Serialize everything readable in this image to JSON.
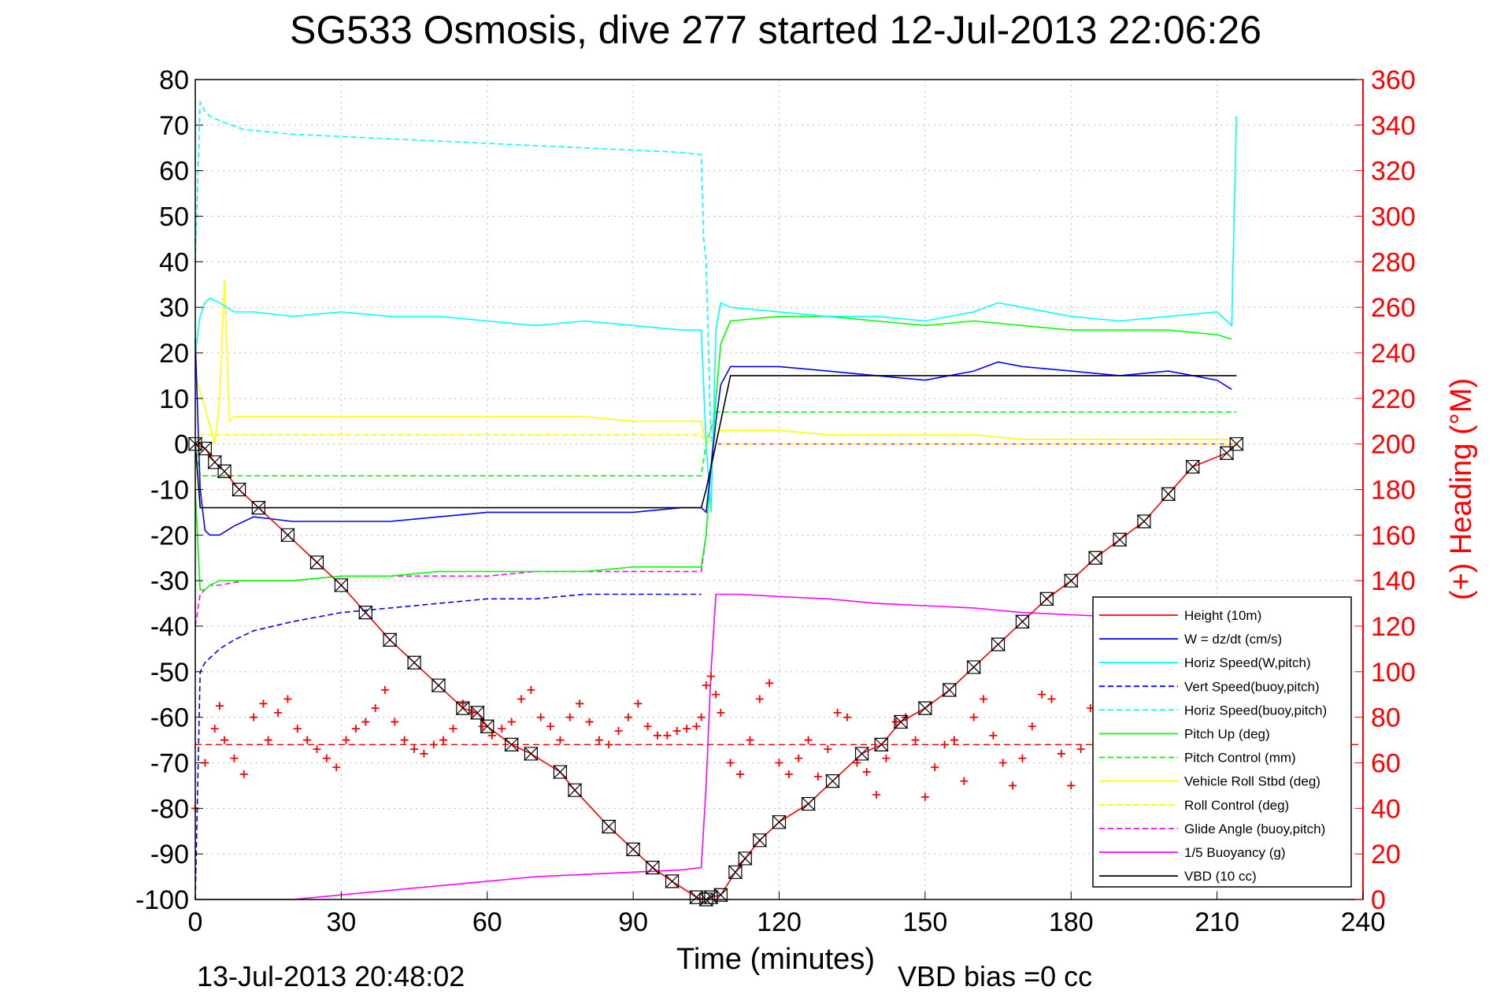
{
  "title": "SG533 Osmosis, dive 277 started 12-Jul-2013 22:06:26",
  "footer": {
    "timestamp": "13-Jul-2013 20:48:02",
    "vbd_bias": "VBD bias =0 cc"
  },
  "chart_data": {
    "type": "line",
    "title": "SG533 Osmosis, dive 277 started 12-Jul-2013 22:06:26",
    "xlabel": "Time (minutes)",
    "ylabel": "",
    "ylabel_right": "(+) Heading (°M)",
    "xlim": [
      0,
      240
    ],
    "ylim": [
      -100,
      80
    ],
    "ylim_right": [
      0,
      360
    ],
    "xticks": [
      0,
      30,
      60,
      90,
      120,
      150,
      180,
      210,
      240
    ],
    "yticks": [
      -100,
      -90,
      -80,
      -70,
      -60,
      -50,
      -40,
      -30,
      -20,
      -10,
      0,
      10,
      20,
      30,
      40,
      50,
      60,
      70,
      80
    ],
    "yticks_right": [
      0,
      20,
      40,
      60,
      80,
      100,
      120,
      140,
      160,
      180,
      200,
      220,
      240,
      260,
      280,
      300,
      320,
      340,
      360
    ],
    "grid": true,
    "legend_position": "bottom-right",
    "colors": {
      "height": "#ff0000",
      "w": "#0000ff",
      "horiz_w": "#00ffff",
      "vert_buoy": "#0000ff",
      "horiz_buoy": "#00ffff",
      "pitch_up": "#00ff00",
      "pitch_control": "#00ff00",
      "roll": "#ffff00",
      "roll_control": "#ffff00",
      "glide": "#ff00ff",
      "buoyancy": "#ff00ff",
      "vbd": "#000000",
      "heading": "#ff0000"
    },
    "series": [
      {
        "name": "Height (10m)",
        "key": "height",
        "style": "solid",
        "marker": "bowtie",
        "x": [
          0,
          2,
          4,
          6,
          9,
          13,
          19,
          25,
          30,
          35,
          40,
          45,
          50,
          55,
          58,
          60,
          65,
          69,
          75,
          78,
          85,
          90,
          94,
          98,
          103,
          105,
          106,
          108,
          111,
          113,
          116,
          120,
          126,
          131,
          137,
          141,
          145,
          150,
          155,
          160,
          165,
          170,
          175,
          180,
          185,
          190,
          195,
          200,
          205,
          212,
          214
        ],
        "y": [
          0,
          -1,
          -4,
          -6,
          -10,
          -14,
          -20,
          -26,
          -31,
          -37,
          -43,
          -48,
          -53,
          -58,
          -59,
          -62,
          -66,
          -68,
          -72,
          -76,
          -84,
          -89,
          -93,
          -96,
          -99.5,
          -100,
          -99.5,
          -99,
          -94,
          -91,
          -87,
          -83,
          -79,
          -74,
          -68,
          -66,
          -61,
          -58,
          -54,
          -49,
          -44,
          -39,
          -34,
          -30,
          -25,
          -21,
          -17,
          -11,
          -5,
          -2,
          0
        ]
      },
      {
        "name": "W = dz/dt (cm/s)",
        "key": "w",
        "style": "solid",
        "x": [
          0,
          1,
          2,
          3,
          5,
          8,
          12,
          20,
          30,
          40,
          50,
          60,
          70,
          80,
          90,
          100,
          104,
          105,
          106,
          107,
          108,
          110,
          120,
          130,
          140,
          150,
          160,
          165,
          170,
          180,
          190,
          200,
          210,
          213
        ],
        "y": [
          23,
          -10,
          -19,
          -20,
          -20,
          -18,
          -16,
          -17,
          -17,
          -17,
          -16,
          -15,
          -15,
          -15,
          -15,
          -14,
          -14,
          -15,
          -5,
          5,
          13,
          17,
          17,
          16,
          15,
          14,
          16,
          18,
          17,
          16,
          15,
          16,
          14,
          12
        ]
      },
      {
        "name": "Horiz Speed(W,pitch)",
        "key": "horiz_w",
        "style": "solid",
        "x": [
          0,
          1,
          2,
          3,
          5,
          8,
          12,
          20,
          30,
          40,
          50,
          60,
          70,
          80,
          90,
          100,
          104,
          105,
          106,
          107,
          108,
          110,
          120,
          130,
          140,
          150,
          160,
          165,
          170,
          180,
          190,
          200,
          210,
          213,
          214
        ],
        "y": [
          20,
          28,
          31,
          32,
          31,
          29,
          29,
          28,
          29,
          28,
          28,
          27,
          26,
          27,
          26,
          25,
          25,
          0,
          -15,
          25,
          31,
          30,
          29,
          28,
          28,
          27,
          29,
          31,
          30,
          28,
          27,
          28,
          29,
          26,
          72
        ]
      },
      {
        "name": "Vert Speed(buoy,pitch)",
        "key": "vert_buoy",
        "style": "dashed",
        "x": [
          0,
          1,
          2,
          3,
          5,
          8,
          12,
          20,
          30,
          40,
          50,
          60,
          70,
          80,
          90,
          100,
          104
        ],
        "y": [
          -100,
          -50,
          -48,
          -47,
          -45,
          -43,
          -41,
          -39,
          -37,
          -36,
          -35,
          -34,
          -34,
          -33,
          -33,
          -33,
          -33
        ]
      },
      {
        "name": "Horiz Speed(buoy,pitch)",
        "key": "horiz_buoy",
        "style": "dashed",
        "x": [
          0,
          1,
          2,
          3,
          5,
          10,
          20,
          30,
          40,
          50,
          60,
          70,
          80,
          90,
          100,
          104,
          104.5,
          105,
          106
        ],
        "y": [
          40,
          75,
          73,
          72,
          71,
          69,
          68,
          67.5,
          67,
          66.5,
          66,
          65.5,
          65,
          64.5,
          64,
          63.5,
          45,
          40,
          0
        ]
      },
      {
        "name": "Pitch Up (deg)",
        "key": "pitch_up",
        "style": "solid",
        "x": [
          0,
          1,
          2,
          3,
          5,
          10,
          20,
          30,
          40,
          50,
          60,
          70,
          80,
          90,
          100,
          104,
          105,
          106,
          107,
          108,
          110,
          120,
          130,
          140,
          150,
          160,
          170,
          180,
          190,
          200,
          210,
          213
        ],
        "y": [
          -10,
          -32,
          -32,
          -31,
          -30,
          -30,
          -30,
          -29,
          -29,
          -28,
          -28,
          -28,
          -28,
          -27,
          -27,
          -27,
          -20,
          -5,
          10,
          22,
          27,
          28,
          28,
          27,
          26,
          27,
          26,
          25,
          25,
          25,
          24,
          23
        ]
      },
      {
        "name": "Pitch Control (mm)",
        "key": "pitch_control",
        "style": "dashed",
        "x": [
          0,
          1,
          2,
          3,
          104,
          105,
          107,
          108,
          214
        ],
        "y": [
          0,
          -7,
          -7,
          -7,
          -7,
          0,
          7,
          7,
          7
        ]
      },
      {
        "name": "Vehicle Roll Stbd (deg)",
        "key": "roll",
        "style": "solid",
        "x": [
          0,
          2,
          4,
          5,
          6,
          7,
          8,
          10,
          20,
          30,
          40,
          50,
          60,
          70,
          80,
          90,
          100,
          104,
          105,
          108,
          120,
          130,
          140,
          150,
          160,
          170,
          180,
          190,
          200,
          210,
          213
        ],
        "y": [
          15,
          8,
          0,
          10,
          36,
          5,
          6,
          6,
          6,
          6,
          6,
          6,
          6,
          6,
          6,
          5,
          5,
          5,
          0,
          3,
          3,
          2,
          2,
          2,
          2,
          1,
          1,
          1,
          1,
          1,
          1
        ]
      },
      {
        "name": "Roll Control (deg)",
        "key": "roll_control",
        "style": "dashed",
        "x": [
          0,
          1,
          2,
          104,
          105,
          106,
          214
        ],
        "y": [
          0,
          2,
          2,
          2,
          0,
          0,
          0
        ]
      },
      {
        "name": "Glide Angle (buoy,pitch)",
        "key": "glide",
        "style": "dashed",
        "x": [
          0,
          1,
          2,
          3,
          5,
          10,
          20,
          30,
          40,
          50,
          60,
          70,
          80,
          90,
          100,
          104,
          105,
          106,
          107,
          214
        ],
        "y": [
          -40,
          -33,
          -32,
          -31,
          -31,
          -30,
          -30,
          -29,
          -29,
          -29,
          -29,
          -28,
          -28,
          -28,
          -28,
          -28,
          -20,
          -5,
          0,
          0
        ]
      },
      {
        "name": "1/5 Buoyancy (g)",
        "key": "buoyancy",
        "style": "solid",
        "x": [
          0,
          2,
          3,
          10,
          20,
          30,
          40,
          50,
          60,
          70,
          80,
          90,
          100,
          104,
          105,
          106,
          107,
          112,
          120,
          130,
          140,
          150,
          160,
          170,
          180,
          190,
          200,
          214
        ],
        "y": [
          -100,
          -100,
          -100,
          -100,
          -100,
          -99,
          -98,
          -97,
          -96,
          -95,
          -94.5,
          -94,
          -93.5,
          -93,
          -75,
          -50,
          -33,
          -33,
          -33.5,
          -34,
          -35,
          -35.5,
          -36,
          -37,
          -37.5,
          -38,
          -38.5,
          -39
        ]
      },
      {
        "name": "VBD (10 cc)",
        "key": "vbd",
        "style": "solid",
        "x": [
          0,
          1,
          2,
          104,
          105,
          106,
          107,
          108,
          109,
          110,
          214
        ],
        "y": [
          0,
          -14,
          -14,
          -14,
          -10,
          -5,
          0,
          5,
          10,
          15,
          15
        ]
      }
    ],
    "heading": {
      "name": "Heading",
      "key": "heading",
      "axis": "right",
      "marker": "+",
      "mean_line": 68,
      "x": [
        0,
        2,
        4,
        5,
        6,
        8,
        10,
        12,
        14,
        15,
        17,
        19,
        21,
        23,
        25,
        27,
        29,
        31,
        33,
        35,
        37,
        39,
        41,
        43,
        45,
        47,
        49,
        51,
        53,
        55,
        57,
        59,
        61,
        63,
        65,
        67,
        69,
        71,
        73,
        75,
        77,
        79,
        81,
        83,
        85,
        87,
        89,
        91,
        93,
        95,
        97,
        99,
        101,
        103,
        104,
        105,
        106,
        107,
        108,
        110,
        112,
        114,
        116,
        118,
        120,
        122,
        124,
        126,
        128,
        130,
        132,
        134,
        136,
        138,
        140,
        142,
        144,
        146,
        148,
        150,
        152,
        154,
        156,
        158,
        160,
        162,
        164,
        166,
        168,
        170,
        172,
        174,
        176,
        178,
        180,
        182,
        184,
        186,
        188,
        190,
        192,
        194,
        196,
        198,
        200,
        202,
        204,
        206,
        208,
        210,
        212,
        214
      ],
      "y": [
        40,
        60,
        75,
        85,
        70,
        62,
        55,
        80,
        86,
        70,
        82,
        88,
        75,
        70,
        66,
        62,
        58,
        70,
        75,
        78,
        84,
        92,
        78,
        70,
        66,
        64,
        68,
        70,
        75,
        86,
        82,
        76,
        72,
        75,
        78,
        88,
        92,
        80,
        76,
        70,
        80,
        86,
        78,
        70,
        68,
        74,
        80,
        86,
        76,
        72,
        72,
        74,
        75,
        76,
        80,
        94,
        98,
        90,
        82,
        60,
        55,
        70,
        88,
        95,
        60,
        55,
        62,
        70,
        54,
        66,
        82,
        80,
        60,
        56,
        46,
        62,
        78,
        80,
        70,
        45,
        58,
        68,
        70,
        52,
        80,
        88,
        72,
        60,
        50,
        62,
        76,
        90,
        88,
        64,
        50,
        66,
        84,
        96,
        70,
        52,
        60,
        76,
        64,
        48,
        52,
        60,
        72,
        60,
        40,
        52,
        66,
        80
      ]
    }
  }
}
